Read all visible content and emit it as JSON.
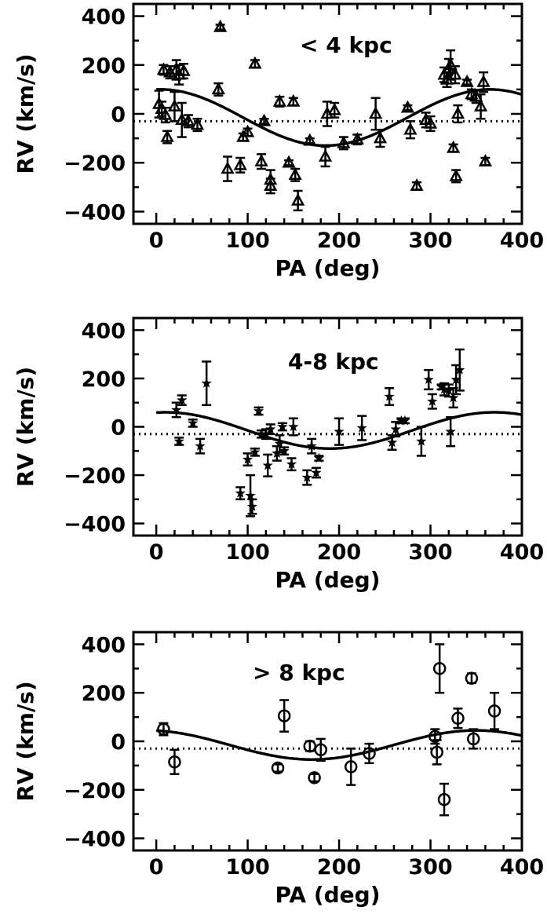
{
  "chart_data": [
    {
      "type": "scatter",
      "title": "",
      "annotation": "< 4 kpc",
      "xlabel": "PA (deg)",
      "ylabel": "RV (km/s)",
      "xlim": [
        -25,
        400
      ],
      "ylim": [
        -450,
        450
      ],
      "xticks": [
        0,
        100,
        200,
        300,
        400
      ],
      "yticks": [
        400,
        200,
        0,
        -200,
        -400
      ],
      "marker": "triangle",
      "systemic_velocity": -30,
      "model": {
        "amplitude": 115,
        "phase_deg": 5,
        "offset": -15
      },
      "points": [
        {
          "x": 3,
          "y": 40,
          "err": 55
        },
        {
          "x": 6,
          "y": 20,
          "err": 30
        },
        {
          "x": 8,
          "y": 180,
          "err": 20
        },
        {
          "x": 10,
          "y": -5,
          "err": 30
        },
        {
          "x": 12,
          "y": -95,
          "err": 25
        },
        {
          "x": 15,
          "y": 170,
          "err": 25
        },
        {
          "x": 20,
          "y": 30,
          "err": 60
        },
        {
          "x": 22,
          "y": 180,
          "err": 40
        },
        {
          "x": 25,
          "y": 160,
          "err": 40
        },
        {
          "x": 28,
          "y": -25,
          "err": 70
        },
        {
          "x": 30,
          "y": 175,
          "err": 30
        },
        {
          "x": 35,
          "y": -30,
          "err": 25
        },
        {
          "x": 45,
          "y": -45,
          "err": 25
        },
        {
          "x": 68,
          "y": 100,
          "err": 25
        },
        {
          "x": 70,
          "y": 355,
          "err": 10
        },
        {
          "x": 78,
          "y": -225,
          "err": 50
        },
        {
          "x": 92,
          "y": -210,
          "err": 30
        },
        {
          "x": 95,
          "y": -95,
          "err": 15
        },
        {
          "x": 100,
          "y": -75,
          "err": 15
        },
        {
          "x": 108,
          "y": 205,
          "err": 15
        },
        {
          "x": 115,
          "y": -195,
          "err": 30
        },
        {
          "x": 118,
          "y": -30,
          "err": 10
        },
        {
          "x": 125,
          "y": -270,
          "err": 40
        },
        {
          "x": 125,
          "y": -295,
          "err": 30
        },
        {
          "x": 135,
          "y": 50,
          "err": 20
        },
        {
          "x": 145,
          "y": -200,
          "err": 10
        },
        {
          "x": 150,
          "y": 50,
          "err": 15
        },
        {
          "x": 152,
          "y": -250,
          "err": 25
        },
        {
          "x": 155,
          "y": -355,
          "err": 40
        },
        {
          "x": 168,
          "y": -110,
          "err": 10
        },
        {
          "x": 185,
          "y": -175,
          "err": 40
        },
        {
          "x": 187,
          "y": 0,
          "err": 50
        },
        {
          "x": 195,
          "y": 15,
          "err": 30
        },
        {
          "x": 205,
          "y": -120,
          "err": 25
        },
        {
          "x": 220,
          "y": -105,
          "err": 20
        },
        {
          "x": 240,
          "y": 0,
          "err": 65
        },
        {
          "x": 245,
          "y": -100,
          "err": 35
        },
        {
          "x": 275,
          "y": 25,
          "err": 10
        },
        {
          "x": 278,
          "y": -65,
          "err": 35
        },
        {
          "x": 285,
          "y": -295,
          "err": 15
        },
        {
          "x": 295,
          "y": -25,
          "err": 30
        },
        {
          "x": 300,
          "y": -40,
          "err": 30
        },
        {
          "x": 315,
          "y": 160,
          "err": 30
        },
        {
          "x": 318,
          "y": 140,
          "err": 30
        },
        {
          "x": 320,
          "y": 185,
          "err": 40
        },
        {
          "x": 322,
          "y": 200,
          "err": 60
        },
        {
          "x": 325,
          "y": -140,
          "err": 15
        },
        {
          "x": 327,
          "y": 160,
          "err": 35
        },
        {
          "x": 328,
          "y": -255,
          "err": 25
        },
        {
          "x": 330,
          "y": 0,
          "err": 35
        },
        {
          "x": 340,
          "y": 130,
          "err": 10
        },
        {
          "x": 345,
          "y": 80,
          "err": 20
        },
        {
          "x": 350,
          "y": 70,
          "err": 25
        },
        {
          "x": 355,
          "y": 30,
          "err": 50
        },
        {
          "x": 358,
          "y": 130,
          "err": 40
        },
        {
          "x": 360,
          "y": -195,
          "err": 15
        }
      ]
    },
    {
      "type": "scatter",
      "title": "",
      "annotation": "4-8 kpc",
      "xlabel": "PA (deg)",
      "ylabel": "RV (km/s)",
      "xlim": [
        -25,
        400
      ],
      "ylim": [
        -450,
        450
      ],
      "xticks": [
        0,
        100,
        200,
        300,
        400
      ],
      "yticks": [
        400,
        200,
        0,
        -200,
        -400
      ],
      "marker": "star",
      "systemic_velocity": -30,
      "model": {
        "amplitude": 75,
        "phase_deg": 10,
        "offset": -15
      },
      "points": [
        {
          "x": 22,
          "y": 70,
          "err": 30
        },
        {
          "x": 25,
          "y": -60,
          "err": 15
        },
        {
          "x": 28,
          "y": 110,
          "err": 20
        },
        {
          "x": 40,
          "y": 15,
          "err": 15
        },
        {
          "x": 48,
          "y": -80,
          "err": 30
        },
        {
          "x": 55,
          "y": 180,
          "err": 90
        },
        {
          "x": 92,
          "y": -275,
          "err": 25
        },
        {
          "x": 100,
          "y": -135,
          "err": 25
        },
        {
          "x": 103,
          "y": -285,
          "err": 85
        },
        {
          "x": 105,
          "y": -330,
          "err": 30
        },
        {
          "x": 108,
          "y": -105,
          "err": 15
        },
        {
          "x": 112,
          "y": 65,
          "err": 15
        },
        {
          "x": 115,
          "y": -30,
          "err": 15
        },
        {
          "x": 120,
          "y": -30,
          "err": 20
        },
        {
          "x": 122,
          "y": -160,
          "err": 45
        },
        {
          "x": 125,
          "y": -10,
          "err": 20
        },
        {
          "x": 132,
          "y": -110,
          "err": 30
        },
        {
          "x": 135,
          "y": -70,
          "err": 35
        },
        {
          "x": 138,
          "y": 0,
          "err": 15
        },
        {
          "x": 140,
          "y": -100,
          "err": 15
        },
        {
          "x": 148,
          "y": -155,
          "err": 25
        },
        {
          "x": 150,
          "y": 0,
          "err": 35
        },
        {
          "x": 165,
          "y": -210,
          "err": 30
        },
        {
          "x": 170,
          "y": -80,
          "err": 30
        },
        {
          "x": 175,
          "y": -190,
          "err": 20
        },
        {
          "x": 178,
          "y": -130,
          "err": 10
        },
        {
          "x": 200,
          "y": -20,
          "err": 55
        },
        {
          "x": 225,
          "y": -5,
          "err": 50
        },
        {
          "x": 255,
          "y": 125,
          "err": 35
        },
        {
          "x": 258,
          "y": -65,
          "err": 30
        },
        {
          "x": 262,
          "y": -10,
          "err": 30
        },
        {
          "x": 268,
          "y": 25,
          "err": 10
        },
        {
          "x": 272,
          "y": 25,
          "err": 10
        },
        {
          "x": 290,
          "y": -60,
          "err": 60
        },
        {
          "x": 298,
          "y": 195,
          "err": 40
        },
        {
          "x": 302,
          "y": 105,
          "err": 30
        },
        {
          "x": 312,
          "y": 165,
          "err": 10
        },
        {
          "x": 315,
          "y": 155,
          "err": 25
        },
        {
          "x": 320,
          "y": 150,
          "err": 25
        },
        {
          "x": 322,
          "y": -20,
          "err": 60
        },
        {
          "x": 325,
          "y": 120,
          "err": 40
        },
        {
          "x": 328,
          "y": 195,
          "err": 60
        },
        {
          "x": 332,
          "y": 235,
          "err": 85
        }
      ]
    },
    {
      "type": "scatter",
      "title": "",
      "annotation": "> 8 kpc",
      "xlabel": "PA (deg)",
      "ylabel": "RV (km/s)",
      "xlim": [
        -25,
        400
      ],
      "ylim": [
        -450,
        450
      ],
      "xticks": [
        0,
        100,
        200,
        300,
        400
      ],
      "yticks": [
        400,
        200,
        0,
        -200,
        -400
      ],
      "marker": "circle",
      "systemic_velocity": -30,
      "model": {
        "amplitude": 60,
        "phase_deg": -10,
        "offset": -15
      },
      "points": [
        {
          "x": 8,
          "y": 50,
          "err": 25
        },
        {
          "x": 20,
          "y": -85,
          "err": 50
        },
        {
          "x": 133,
          "y": -110,
          "err": 15
        },
        {
          "x": 140,
          "y": 105,
          "err": 65
        },
        {
          "x": 168,
          "y": -20,
          "err": 20
        },
        {
          "x": 173,
          "y": -150,
          "err": 15
        },
        {
          "x": 180,
          "y": -35,
          "err": 45
        },
        {
          "x": 213,
          "y": -105,
          "err": 75
        },
        {
          "x": 233,
          "y": -50,
          "err": 40
        },
        {
          "x": 305,
          "y": 20,
          "err": 30
        },
        {
          "x": 307,
          "y": -45,
          "err": 50
        },
        {
          "x": 310,
          "y": 300,
          "err": 100
        },
        {
          "x": 315,
          "y": -240,
          "err": 65
        },
        {
          "x": 330,
          "y": 95,
          "err": 40
        },
        {
          "x": 345,
          "y": 260,
          "err": 20
        },
        {
          "x": 347,
          "y": 10,
          "err": 40
        },
        {
          "x": 370,
          "y": 125,
          "err": 75
        }
      ]
    }
  ]
}
